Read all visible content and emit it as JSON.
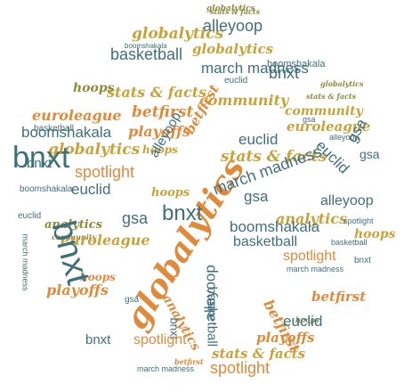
{
  "palette": {
    "teal": "#3f6f7b",
    "orange": "#e08a3c",
    "gold": "#c9a23a",
    "olive": "#8d8a3d"
  },
  "words": [
    {
      "text": "globalytics"
    },
    {
      "text": "stats & facts"
    },
    {
      "text": "basketball"
    },
    {
      "text": "hoops"
    },
    {
      "text": "alleyoop"
    },
    {
      "text": "boomshakala"
    },
    {
      "text": "community"
    },
    {
      "text": "march madness"
    },
    {
      "text": "bnxt"
    },
    {
      "text": "betfirst"
    },
    {
      "text": "playoffs"
    },
    {
      "text": "euroleague"
    },
    {
      "text": "spotlight"
    },
    {
      "text": "euclid"
    },
    {
      "text": "gsa"
    },
    {
      "text": "analytics"
    }
  ]
}
